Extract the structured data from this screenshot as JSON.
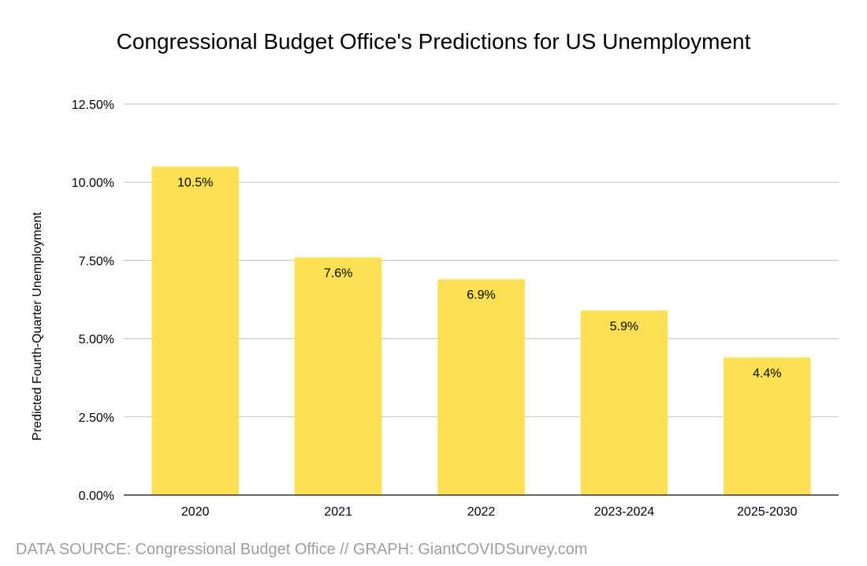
{
  "chart_data": {
    "type": "bar",
    "title": "Congressional Budget Office's Predictions for US Unemployment",
    "xlabel": "",
    "ylabel": "Predicted Fourth-Quarter Unemployment",
    "categories": [
      "2020",
      "2021",
      "2022",
      "2023-2024",
      "2025-2030"
    ],
    "values": [
      10.5,
      7.6,
      6.9,
      5.9,
      4.4
    ],
    "data_labels": [
      "10.5%",
      "7.6%",
      "6.9%",
      "5.9%",
      "4.4%"
    ],
    "ylim": [
      0,
      12.5
    ],
    "yticks": [
      0,
      2.5,
      5,
      7.5,
      10,
      12.5
    ],
    "ytick_labels": [
      "0.00%",
      "2.50%",
      "5.00%",
      "7.50%",
      "10.00%",
      "12.50%"
    ],
    "grid": true,
    "legend": "none",
    "bar_color": "#fde053"
  },
  "footer": {
    "source": "DATA SOURCE: Congressional Budget Office // GRAPH: GiantCOVIDSurvey.com"
  }
}
